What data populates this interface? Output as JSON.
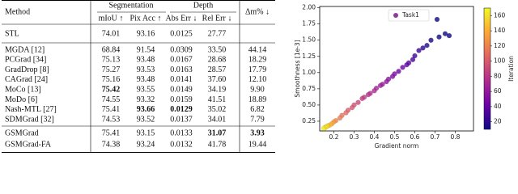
{
  "table": {
    "header": {
      "method": "Method",
      "segmentation": "Segmentation",
      "depth": "Depth",
      "delta": "Δm% ↓"
    },
    "subheader": [
      "mIoU ↑",
      "Pix Acc ↑",
      "Abs Err ↓",
      "Rel Err ↓"
    ],
    "reference": [
      "STL",
      "74.01",
      "93.16",
      "0.0125",
      "27.77"
    ],
    "rows": [
      [
        "MGDA [12]",
        "68.84",
        "91.54",
        "0.0309",
        "33.50",
        "44.14"
      ],
      [
        "PCGrad [34]",
        "75.13",
        "93.48",
        "0.0167",
        "28.68",
        "18.29"
      ],
      [
        "GradDrop [8]",
        "75.27",
        "93.53",
        "0.0163",
        "28.57",
        "17.79"
      ],
      [
        "CAGrad [24]",
        "75.16",
        "93.48",
        "0.0141",
        "37.60",
        "12.10"
      ],
      [
        "MoCo [13]",
        "75.42",
        "93.55",
        "0.0149",
        "34.19",
        "9.90"
      ],
      [
        "MoDo [6]",
        "74.55",
        "93.32",
        "0.0159",
        "41.51",
        "18.89"
      ],
      [
        "Nash-MTL [27]",
        "75.41",
        "93.66",
        "0.0129",
        "35.02",
        "6.82"
      ],
      [
        "SDMGrad [32]",
        "74.53",
        "93.52",
        "0.0137",
        "34.01",
        "7.79"
      ]
    ],
    "ours": [
      [
        "GSMGrad",
        "75.41",
        "93.15",
        "0.0133",
        "31.07",
        "3.93"
      ],
      [
        "GSMGrad-FA",
        "74.38",
        "93.24",
        "0.0132",
        "41.78",
        "19.44"
      ]
    ]
  },
  "chart_data": {
    "type": "scatter",
    "x_label": "Gradient norm",
    "y_label": "Smoothness [1e-3]",
    "colorbar_label": "Iteration",
    "colormap": "plasma",
    "legend": "upper-center",
    "xlim": [
      0.13,
      0.89
    ],
    "xticks": [
      0.2,
      0.3,
      0.4,
      0.5,
      0.6,
      0.7,
      0.8
    ],
    "ylim": [
      0.1,
      2.02
    ],
    "yticks": [
      {
        "value": 0.25,
        "label": "0.25"
      },
      {
        "value": 0.5,
        "label": "0.50"
      },
      {
        "value": 0.75,
        "label": "0.75"
      },
      {
        "value": 1,
        "label": "1.00"
      },
      {
        "value": 1.25,
        "label": "1.25"
      },
      {
        "value": 1.5,
        "label": "1.50"
      },
      {
        "value": 1.75,
        "label": "1.75"
      },
      {
        "value": 2,
        "label": "2.00"
      }
    ],
    "clim": [
      10,
      170
    ],
    "cticks": [
      20,
      40,
      60,
      80,
      100,
      120,
      140,
      160
    ],
    "series": [
      {
        "name": "Task1",
        "color": "#8e3b9c",
        "x": [
          0.77,
          0.75,
          0.72,
          0.71,
          0.68,
          0.66,
          0.64,
          0.62,
          0.6,
          0.59,
          0.57,
          0.56,
          0.54,
          0.52,
          0.5,
          0.49,
          0.47,
          0.46,
          0.44,
          0.43,
          0.41,
          0.4,
          0.38,
          0.37,
          0.35,
          0.34,
          0.32,
          0.3,
          0.29,
          0.27,
          0.26,
          0.24,
          0.23,
          0.21,
          0.2,
          0.19,
          0.18,
          0.17,
          0.16,
          0.155,
          0.15,
          0.165
        ],
        "values": [
          1.57,
          1.6,
          1.55,
          1.82,
          1.5,
          1.42,
          1.38,
          1.34,
          1.26,
          1.2,
          1.15,
          1.12,
          1.08,
          1.02,
          0.98,
          0.94,
          0.9,
          0.86,
          0.82,
          0.8,
          0.76,
          0.72,
          0.68,
          0.66,
          0.62,
          0.6,
          0.54,
          0.5,
          0.46,
          0.42,
          0.38,
          0.34,
          0.3,
          0.26,
          0.24,
          0.21,
          0.19,
          0.18,
          0.16,
          0.15,
          0.14,
          0.17
        ],
        "c": [
          5,
          8,
          10,
          6,
          14,
          18,
          20,
          25,
          28,
          30,
          35,
          38,
          42,
          45,
          50,
          52,
          55,
          58,
          62,
          65,
          68,
          72,
          75,
          78,
          82,
          85,
          90,
          95,
          98,
          102,
          108,
          112,
          118,
          125,
          130,
          138,
          145,
          150,
          155,
          160,
          165,
          158
        ]
      }
    ]
  }
}
